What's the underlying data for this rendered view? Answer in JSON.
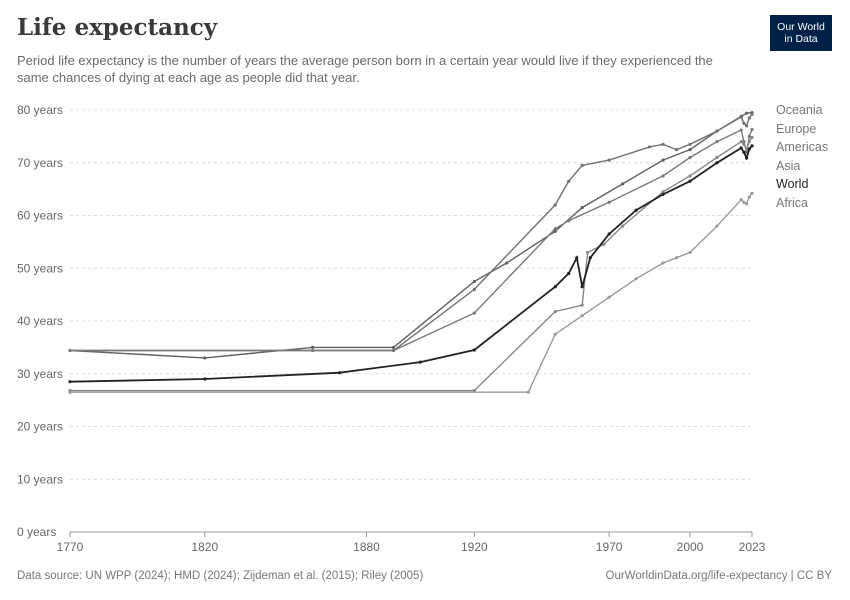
{
  "title": "Life expectancy",
  "subtitle": "Period life expectancy is the number of years the average person born in a certain year would live if they experienced the same chances of dying at each age as people did that year.",
  "logo": {
    "line1": "Our World",
    "line2": "in Data",
    "bg": "#002147"
  },
  "footer": {
    "left": "Data source: UN WPP (2024); HMD (2024); Zijdeman et al. (2015); Riley (2005)",
    "right": "OurWorldinData.org/life-expectancy | CC BY"
  },
  "chart_data": {
    "type": "line",
    "title": "Life expectancy",
    "xlabel": "",
    "ylabel": "",
    "xlim": [
      1770,
      2023
    ],
    "ylim": [
      0,
      80
    ],
    "x_ticks": [
      1770,
      1820,
      1880,
      1920,
      1970,
      2000,
      2023
    ],
    "y_ticks": [
      0,
      10,
      20,
      30,
      40,
      50,
      60,
      70,
      80
    ],
    "y_tick_labels": [
      "0 years",
      "10 years",
      "20 years",
      "30 years",
      "40 years",
      "50 years",
      "60 years",
      "70 years",
      "80 years"
    ],
    "grid": true,
    "legend_placement": "right",
    "series": [
      {
        "name": "Oceania",
        "color": "#606060",
        "points": [
          [
            1770,
            34.4
          ],
          [
            1820,
            33.0
          ],
          [
            1860,
            35.0
          ],
          [
            1890,
            35.0
          ],
          [
            1920,
            47.5
          ],
          [
            1932,
            51
          ],
          [
            1950,
            57
          ],
          [
            1960,
            61.5
          ],
          [
            1975,
            66
          ],
          [
            1990,
            70.5
          ],
          [
            2000,
            72.5
          ],
          [
            2010,
            76
          ],
          [
            2019,
            78.8
          ],
          [
            2021,
            79.4
          ],
          [
            2023,
            79.5
          ]
        ]
      },
      {
        "name": "Europe",
        "color": "#707070",
        "points": [
          [
            1770,
            34.4
          ],
          [
            1860,
            34.4
          ],
          [
            1890,
            34.4
          ],
          [
            1920,
            46
          ],
          [
            1950,
            62
          ],
          [
            1955,
            66.5
          ],
          [
            1960,
            69.5
          ],
          [
            1970,
            70.5
          ],
          [
            1985,
            73
          ],
          [
            1990,
            73.5
          ],
          [
            1995,
            72.5
          ],
          [
            2000,
            73.5
          ],
          [
            2010,
            76
          ],
          [
            2019,
            78.7
          ],
          [
            2020,
            77.5
          ],
          [
            2021,
            77
          ],
          [
            2022,
            78.5
          ],
          [
            2023,
            79.2
          ]
        ]
      },
      {
        "name": "Americas",
        "color": "#787878",
        "points": [
          [
            1770,
            34.4
          ],
          [
            1860,
            34.4
          ],
          [
            1890,
            34.4
          ],
          [
            1920,
            41.5
          ],
          [
            1950,
            57.5
          ],
          [
            1955,
            59
          ],
          [
            1970,
            62.5
          ],
          [
            1990,
            67.5
          ],
          [
            2000,
            71
          ],
          [
            2010,
            74
          ],
          [
            2019,
            76.2
          ],
          [
            2020,
            74
          ],
          [
            2021,
            72
          ],
          [
            2022,
            75
          ],
          [
            2023,
            76.3
          ]
        ]
      },
      {
        "name": "Asia",
        "color": "#888888",
        "points": [
          [
            1770,
            26.8
          ],
          [
            1920,
            26.8
          ],
          [
            1950,
            41.8
          ],
          [
            1960,
            43
          ],
          [
            1962,
            53
          ],
          [
            1968,
            54.5
          ],
          [
            1975,
            58
          ],
          [
            1990,
            64.5
          ],
          [
            2000,
            67.5
          ],
          [
            2010,
            71
          ],
          [
            2019,
            74
          ],
          [
            2020,
            73.5
          ],
          [
            2021,
            72.5
          ],
          [
            2022,
            74
          ],
          [
            2023,
            74.8
          ]
        ]
      },
      {
        "name": "World",
        "color": "#222222",
        "points": [
          [
            1770,
            28.5
          ],
          [
            1820,
            29
          ],
          [
            1870,
            30.2
          ],
          [
            1900,
            32.2
          ],
          [
            1920,
            34.5
          ],
          [
            1950,
            46.5
          ],
          [
            1955,
            49
          ],
          [
            1958,
            52
          ],
          [
            1960,
            46.5
          ],
          [
            1963,
            52
          ],
          [
            1970,
            56.5
          ],
          [
            1980,
            61
          ],
          [
            1990,
            64
          ],
          [
            2000,
            66.5
          ],
          [
            2010,
            70
          ],
          [
            2019,
            72.8
          ],
          [
            2020,
            72
          ],
          [
            2021,
            70.9
          ],
          [
            2022,
            72.6
          ],
          [
            2023,
            73.2
          ]
        ]
      },
      {
        "name": "Africa",
        "color": "#999999",
        "points": [
          [
            1770,
            26.5
          ],
          [
            1940,
            26.5
          ],
          [
            1950,
            37.5
          ],
          [
            1960,
            41
          ],
          [
            1970,
            44.5
          ],
          [
            1980,
            48
          ],
          [
            1990,
            51
          ],
          [
            1995,
            52
          ],
          [
            2000,
            53
          ],
          [
            2010,
            58
          ],
          [
            2019,
            63
          ],
          [
            2020,
            62.5
          ],
          [
            2021,
            62.2
          ],
          [
            2022,
            63.5
          ],
          [
            2023,
            64.2
          ]
        ]
      }
    ]
  }
}
